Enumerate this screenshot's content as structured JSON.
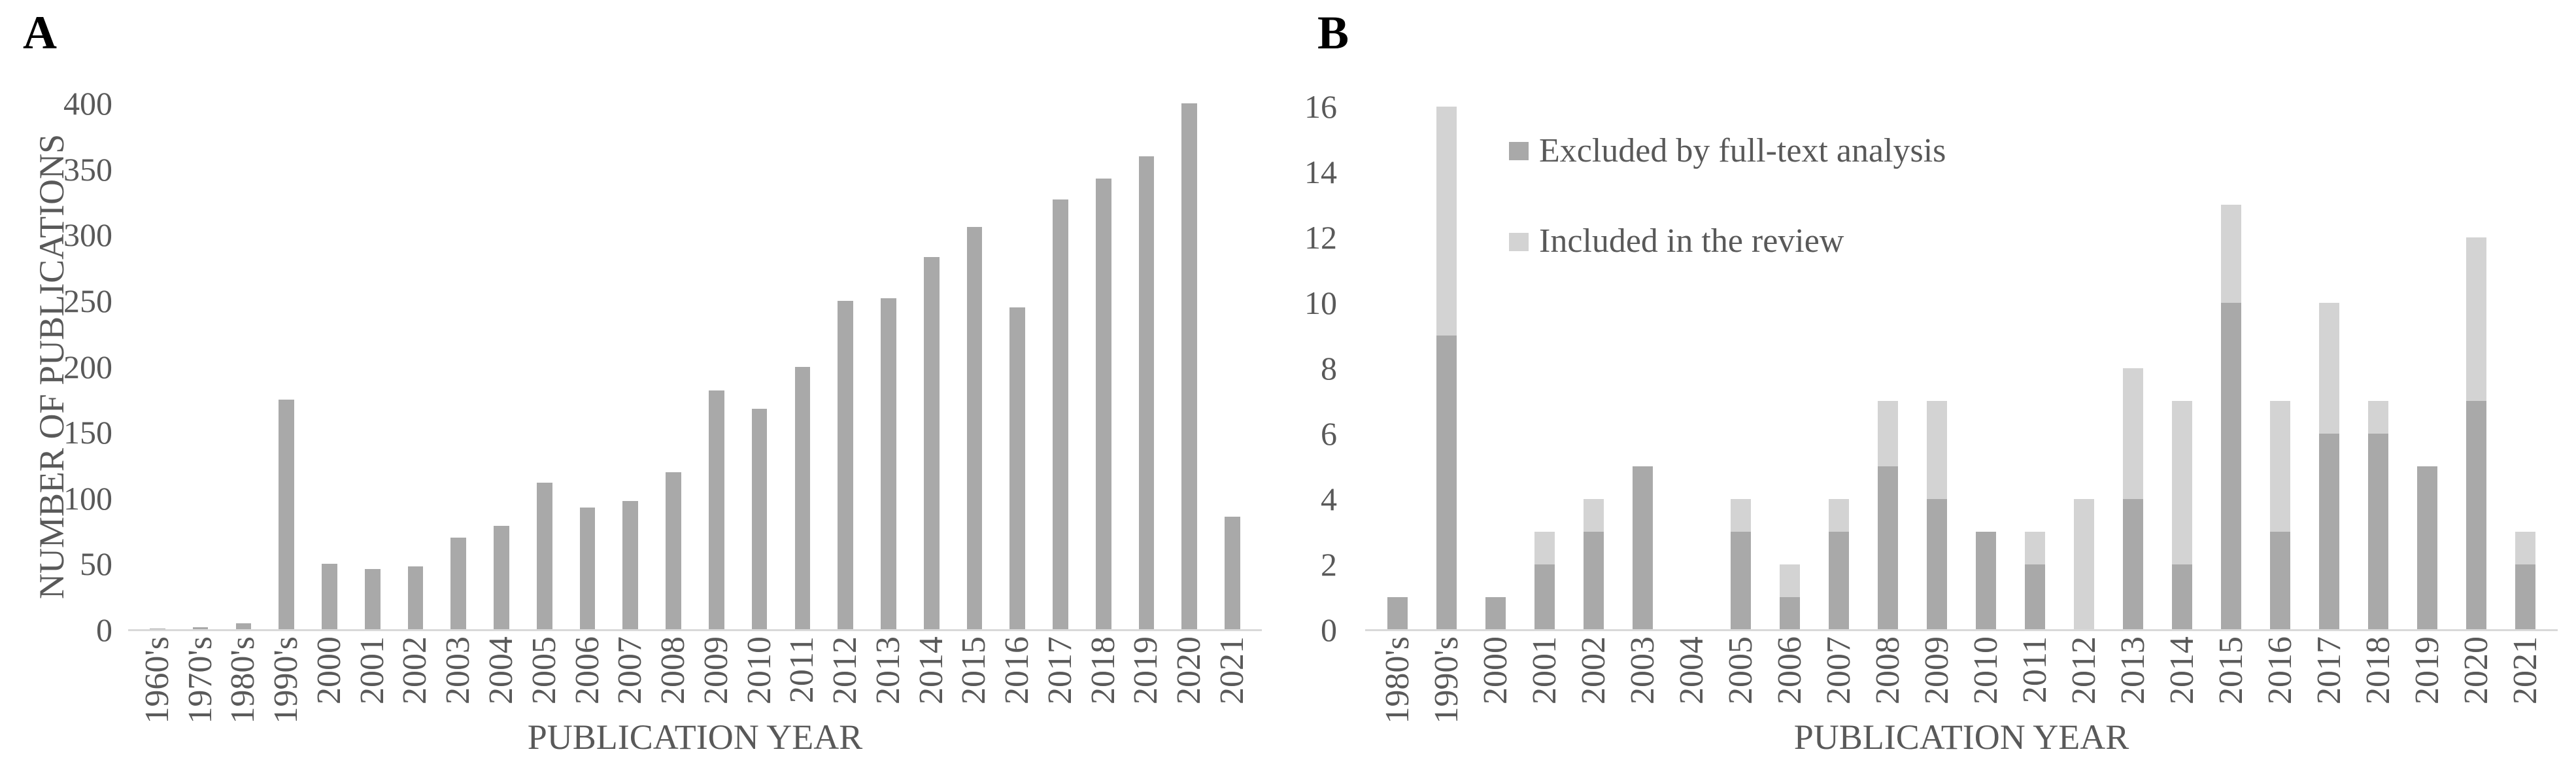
{
  "colors": {
    "bar_dark": "#a9a9a9",
    "bar_light": "#d3d3d3",
    "axis_line": "#d9d9d9",
    "text": "#595959",
    "panel_letter": "#000000"
  },
  "panel_a": {
    "letter": "A",
    "y_title": "NUMBER OF PUBLICATIONS",
    "x_title": "PUBLICATION YEAR"
  },
  "panel_b": {
    "letter": "B",
    "x_title": "PUBLICATION YEAR",
    "legend": {
      "excluded_label": "Excluded by full-text analysis",
      "included_label": "Included in the review"
    }
  },
  "chart_data": [
    {
      "type": "bar",
      "title": "",
      "xlabel": "PUBLICATION YEAR",
      "ylabel": "NUMBER OF PUBLICATIONS",
      "ylim": [
        0,
        400
      ],
      "yticks": [
        0,
        50,
        100,
        150,
        200,
        250,
        300,
        350,
        400
      ],
      "grid": false,
      "categories": [
        "1960's",
        "1970's",
        "1980's",
        "1990's",
        "2000",
        "2001",
        "2002",
        "2003",
        "2004",
        "2005",
        "2006",
        "2007",
        "2008",
        "2009",
        "2010",
        "2011",
        "2012",
        "2013",
        "2014",
        "2015",
        "2016",
        "2017",
        "2018",
        "2019",
        "2020",
        "2021"
      ],
      "values": [
        1,
        2,
        5,
        175,
        50,
        46,
        48,
        70,
        79,
        112,
        93,
        98,
        120,
        182,
        168,
        200,
        250,
        252,
        283,
        306,
        245,
        327,
        343,
        360,
        411,
        86
      ]
    },
    {
      "type": "stacked-bar",
      "title": "",
      "xlabel": "PUBLICATION YEAR",
      "ylabel": "",
      "ylim": [
        0,
        16
      ],
      "yticks": [
        0,
        2,
        4,
        6,
        8,
        10,
        12,
        14,
        16
      ],
      "grid": false,
      "legend_position": "upper-left-inside",
      "categories": [
        "1980's",
        "1990's",
        "2000",
        "2001",
        "2002",
        "2003",
        "2004",
        "2005",
        "2006",
        "2007",
        "2008",
        "2009",
        "2010",
        "2011",
        "2012",
        "2013",
        "2014",
        "2015",
        "2016",
        "2017",
        "2018",
        "2019",
        "2020",
        "2021"
      ],
      "series": [
        {
          "name": "Excluded by full-text analysis",
          "values": [
            1,
            9,
            1,
            2,
            3,
            5,
            0,
            3,
            1,
            3,
            5,
            4,
            3,
            2,
            0,
            4,
            2,
            10,
            3,
            6,
            6,
            5,
            7,
            2
          ]
        },
        {
          "name": "Included in the review",
          "values": [
            0,
            7,
            0,
            1,
            1,
            0,
            0,
            1,
            1,
            1,
            2,
            3,
            0,
            1,
            4,
            4,
            5,
            3,
            4,
            4,
            1,
            0,
            5,
            1
          ]
        }
      ]
    }
  ]
}
